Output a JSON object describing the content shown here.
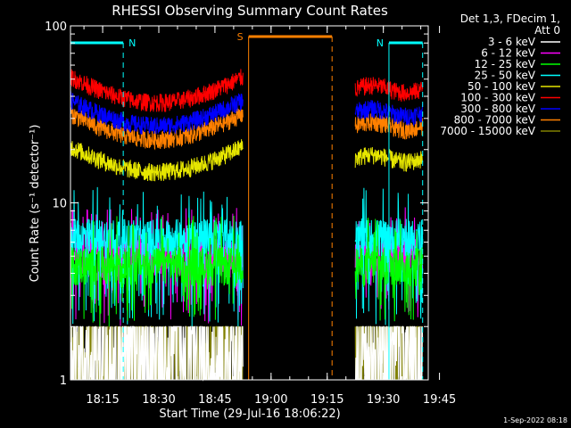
{
  "chart_data": {
    "type": "line",
    "title": "RHESSI Observing Summary Count Rates",
    "xlabel": "Start Time (29-Jul-16 18:06:22)",
    "ylabel": "Count Rate (s⁻¹ detector⁻¹)",
    "y_scale": "log",
    "ylim": [
      1,
      100
    ],
    "xlim_minutes_after_18_00": [
      6.4,
      102
    ],
    "x_ticks": [
      "18:15",
      "18:30",
      "18:45",
      "19:00",
      "19:15",
      "19:30",
      "19:45"
    ],
    "y_ticks": [
      "1",
      "10",
      "100"
    ],
    "grid": false,
    "legend_position": "right",
    "legend_header": [
      "Det 1,3, FDecim 1,",
      "Att 0"
    ],
    "series": [
      {
        "name": "3 - 6 keV",
        "color": "#ffffff",
        "typical_value": 1.5
      },
      {
        "name": "6 - 12 keV",
        "color": "#ff00ff",
        "typical_value": 5.0
      },
      {
        "name": "12 - 25 keV",
        "color": "#00ff00",
        "typical_value": 4.5
      },
      {
        "name": "25 - 50 keV",
        "color": "#00ffff",
        "typical_value": 6.5
      },
      {
        "name": "50 - 100 keV",
        "color": "#e6e600",
        "typical_value": 17
      },
      {
        "name": "100 - 300 keV",
        "color": "#ff0000",
        "typical_value": 42
      },
      {
        "name": "300 - 800 keV",
        "color": "#0000ff",
        "typical_value": 31
      },
      {
        "name": "800 - 7000 keV",
        "color": "#ff8000",
        "typical_value": 26
      },
      {
        "name": "7000 - 15000 keV",
        "color": "#808000",
        "typical_value": 1.5
      }
    ],
    "segments": [
      {
        "start": 6.4,
        "end": 52.5
      },
      {
        "start": 82.5,
        "end": 100.5
      }
    ],
    "annotations": [
      {
        "label": "N",
        "color": "#00ffff",
        "start": 6.4,
        "end": 20.5
      },
      {
        "label": "N",
        "color": "#00ffff",
        "start": 91.5,
        "end": 100.5
      },
      {
        "label": "S",
        "color": "#ff8000",
        "start": 54.0,
        "end": 76.3
      }
    ],
    "footer": "1-Sep-2022 08:18"
  }
}
